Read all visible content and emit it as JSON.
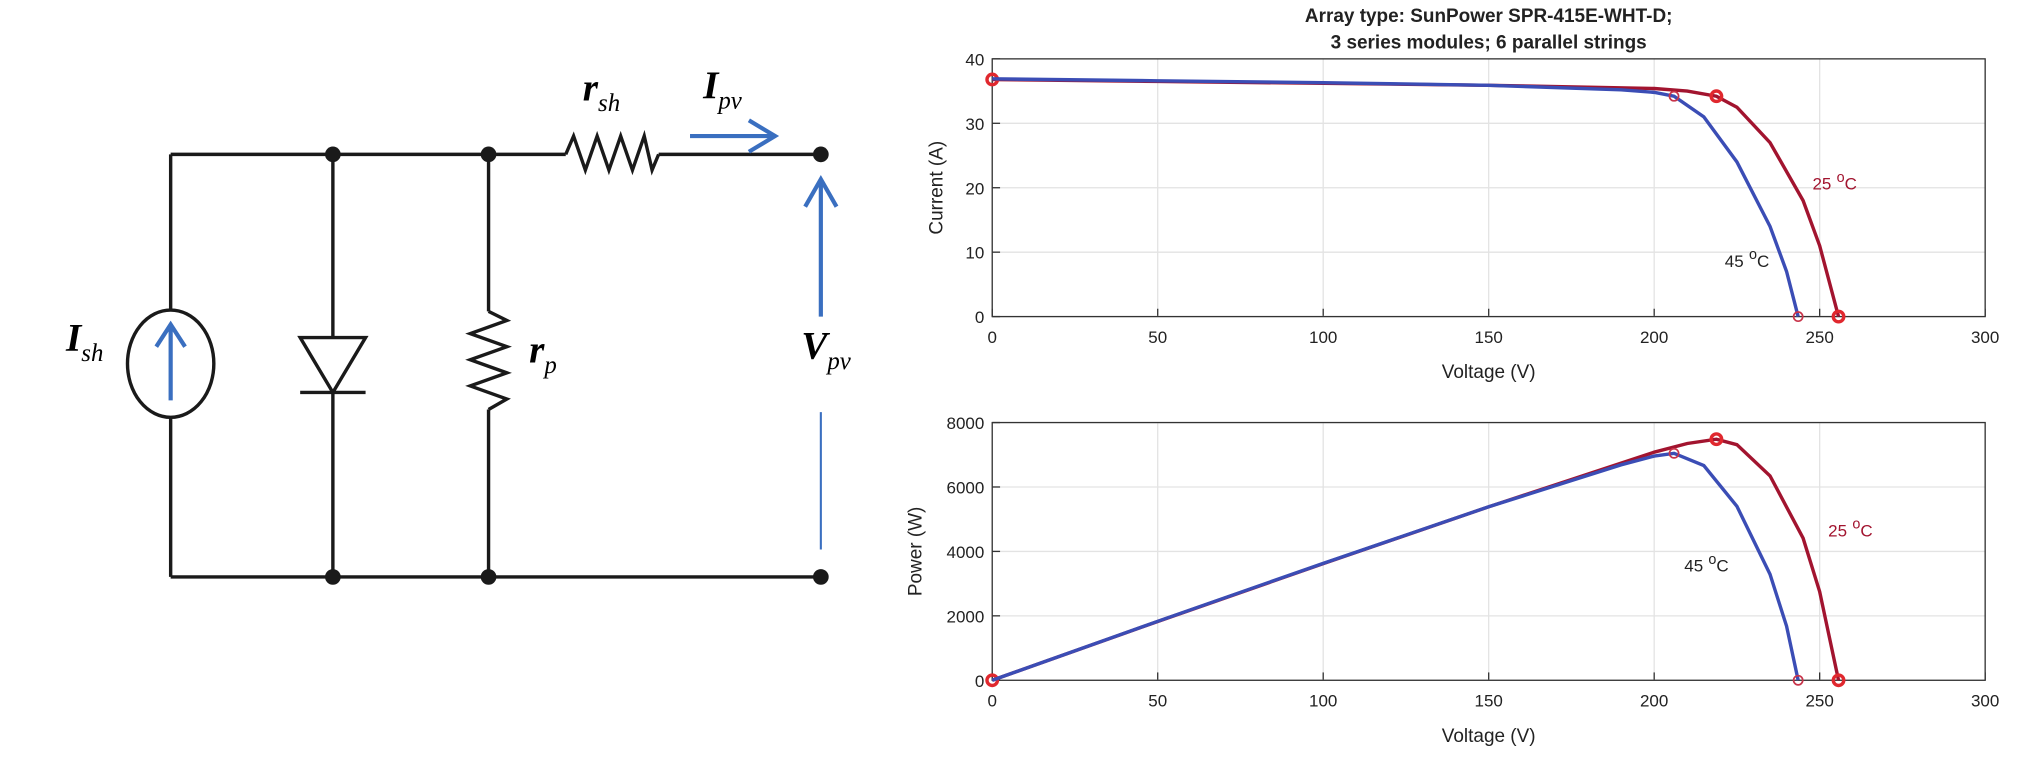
{
  "diagram": {
    "labels": [
      {
        "main": "I",
        "sub": "sh"
      },
      {
        "main": "r",
        "sub": "sh"
      },
      {
        "main": "I",
        "sub": "pv"
      },
      {
        "main": "r",
        "sub": "p"
      },
      {
        "main": "V",
        "sub": "pv"
      }
    ]
  },
  "chart_data": [
    {
      "type": "line",
      "title": [
        "Array type: SunPower SPR-415E-WHT-D;",
        "3 series modules; 6 parallel strings"
      ],
      "x_label": "Voltage (V)",
      "y_label": "Current (A)",
      "xlim": [
        0,
        300
      ],
      "ylim": [
        0,
        40
      ],
      "xticks": [
        0,
        50,
        100,
        150,
        200,
        250,
        300
      ],
      "yticks": [
        0,
        10,
        20,
        30,
        40
      ],
      "grid": true,
      "series": [
        {
          "label": {
            "number": "25",
            "sup": "o",
            "unit": "C"
          },
          "color": "#a2142f",
          "x": [
            0,
            50,
            100,
            150,
            200,
            210,
            218.8,
            225,
            235,
            245,
            250,
            255.7
          ],
          "values": [
            36.8,
            36.5,
            36.2,
            35.9,
            35.4,
            35.0,
            34.2,
            32.5,
            27,
            18,
            11,
            0
          ],
          "markers": {
            "color": "#e0282e",
            "x": [
              0,
              218.8,
              255.7
            ],
            "values": [
              36.8,
              34.2,
              0
            ]
          }
        },
        {
          "label": {
            "number": "45",
            "sup": "o",
            "unit": "C"
          },
          "color": "#3b4db5",
          "x": [
            0,
            50,
            100,
            150,
            190,
            200,
            206,
            215,
            225,
            235,
            240,
            243.5
          ],
          "values": [
            36.9,
            36.6,
            36.3,
            35.9,
            35.2,
            34.8,
            34.2,
            31,
            24,
            14,
            7,
            0
          ],
          "markers": {
            "color": "#c8344a",
            "x": [
              206,
              243.5
            ],
            "values": [
              34.2,
              0
            ]
          }
        }
      ]
    },
    {
      "type": "line",
      "x_label": "Voltage (V)",
      "y_label": "Power (W)",
      "xlim": [
        0,
        300
      ],
      "ylim": [
        0,
        8000
      ],
      "xticks": [
        0,
        50,
        100,
        150,
        200,
        250,
        300
      ],
      "yticks": [
        0,
        2000,
        4000,
        6000,
        8000
      ],
      "grid": true,
      "series": [
        {
          "label": {
            "number": "25",
            "sup": "o",
            "unit": "C"
          },
          "color": "#a2142f",
          "x": [
            0,
            50,
            100,
            150,
            200,
            210,
            218.8,
            225,
            235,
            245,
            250,
            255.7
          ],
          "values": [
            0,
            1825,
            3620,
            5385,
            7080,
            7350,
            7483,
            7313,
            6345,
            4410,
            2750,
            0
          ],
          "markers": {
            "color": "#e0282e",
            "x": [
              0,
              218.8,
              255.7
            ],
            "values": [
              0,
              7483,
              0
            ]
          }
        },
        {
          "label": {
            "number": "45",
            "sup": "o",
            "unit": "C"
          },
          "color": "#3b4db5",
          "x": [
            0,
            50,
            100,
            150,
            190,
            200,
            206,
            215,
            225,
            235,
            240,
            243.5
          ],
          "values": [
            0,
            1830,
            3630,
            5385,
            6688,
            6960,
            7045,
            6665,
            5400,
            3290,
            1680,
            0
          ],
          "markers": {
            "color": "#c8344a",
            "x": [
              206,
              243.5
            ],
            "values": [
              7045,
              0
            ]
          }
        }
      ]
    }
  ]
}
